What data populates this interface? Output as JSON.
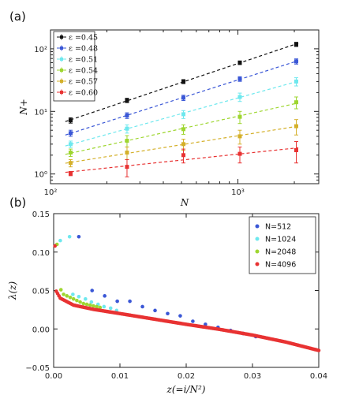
{
  "panel_labels": {
    "a": "(a)",
    "b": "(b)"
  },
  "chart_data": [
    {
      "type": "scatter",
      "panel": "(a)",
      "xlabel": "N",
      "ylabel": "N+",
      "xscale": "log",
      "yscale": "log",
      "xlim": [
        100,
        2700
      ],
      "ylim": [
        0.7,
        200
      ],
      "x_ticks": [
        {
          "v": 100,
          "l": "10²"
        },
        {
          "v": 1000,
          "l": "10³"
        }
      ],
      "y_ticks": [
        {
          "v": 1,
          "l": "10⁰"
        },
        {
          "v": 10,
          "l": "10¹"
        },
        {
          "v": 100,
          "l": "10²"
        }
      ],
      "error_bars": true,
      "fit_lines": "dashed",
      "grid": false,
      "legend": "top-left",
      "x": [
        128,
        256,
        512,
        1024,
        2048
      ],
      "series": [
        {
          "name": "ε =0.45",
          "color": "#111111",
          "values": [
            7.2,
            15,
            30,
            60,
            118
          ],
          "errors": [
            0.7,
            1.2,
            2.2,
            4,
            9
          ]
        },
        {
          "name": "ε =0.48",
          "color": "#3a57d6",
          "values": [
            4.5,
            8.6,
            16.5,
            33,
            63
          ],
          "errors": [
            0.5,
            0.9,
            1.6,
            2.8,
            6
          ]
        },
        {
          "name": "ε =0.51",
          "color": "#6ee8ee",
          "values": [
            3.0,
            5.3,
            9.0,
            17,
            30
          ],
          "errors": [
            0.35,
            0.8,
            1.3,
            2.6,
            4.5
          ]
        },
        {
          "name": "ε =0.54",
          "color": "#9ed630",
          "values": [
            2.2,
            3.4,
            5.2,
            8.2,
            14
          ],
          "errors": [
            0.3,
            0.7,
            0.9,
            1.8,
            3
          ]
        },
        {
          "name": "ε =0.57",
          "color": "#d4b02a",
          "values": [
            1.5,
            2.2,
            3.0,
            4.0,
            5.8
          ],
          "errors": [
            0.2,
            0.5,
            0.6,
            1.0,
            1.6
          ]
        },
        {
          "name": "ε =0.60",
          "color": "#e83232",
          "values": [
            1.02,
            1.3,
            2.0,
            2.1,
            2.4
          ],
          "errors": [
            0.08,
            0.4,
            0.5,
            0.6,
            0.9
          ]
        }
      ]
    },
    {
      "type": "scatter",
      "panel": "(b)",
      "xlabel": "z(=i/N²)",
      "ylabel": "λ(z)",
      "xlim": [
        0.0,
        0.04
      ],
      "ylim": [
        -0.05,
        0.15
      ],
      "x_ticks": [
        {
          "v": 0.0,
          "l": "0.00"
        },
        {
          "v": 0.01,
          "l": "0.01"
        },
        {
          "v": 0.02,
          "l": "0.02"
        },
        {
          "v": 0.03,
          "l": "0.03"
        },
        {
          "v": 0.04,
          "l": "0.04"
        }
      ],
      "y_ticks": [
        {
          "v": -0.05,
          "l": "−0.05"
        },
        {
          "v": 0.0,
          "l": "0.00"
        },
        {
          "v": 0.05,
          "l": "0.05"
        },
        {
          "v": 0.1,
          "l": "0.10"
        },
        {
          "v": 0.15,
          "l": "0.15"
        }
      ],
      "grid": false,
      "legend": "top-right",
      "series": [
        {
          "name": "N=512",
          "color": "#3a57d6",
          "points": [
            [
              0.0038,
              0.12
            ],
            [
              0.0058,
              0.05
            ],
            [
              0.0077,
              0.043
            ],
            [
              0.0096,
              0.036
            ],
            [
              0.0115,
              0.036
            ],
            [
              0.0134,
              0.029
            ],
            [
              0.0153,
              0.024
            ],
            [
              0.0172,
              0.02
            ],
            [
              0.0191,
              0.017
            ],
            [
              0.021,
              0.01
            ],
            [
              0.0229,
              0.006
            ],
            [
              0.0248,
              0.002
            ],
            [
              0.0267,
              -0.002
            ],
            [
              0.0286,
              -0.006
            ],
            [
              0.0305,
              -0.01
            ]
          ]
        },
        {
          "name": "N=1024",
          "color": "#6ee8ee",
          "points": [
            [
              0.001,
              0.115
            ],
            [
              0.0024,
              0.12
            ],
            [
              0.0029,
              0.045
            ],
            [
              0.0038,
              0.042
            ],
            [
              0.0048,
              0.039
            ],
            [
              0.0057,
              0.035
            ],
            [
              0.0067,
              0.032
            ],
            [
              0.0076,
              0.029
            ],
            [
              0.0086,
              0.027
            ],
            [
              0.0095,
              0.024
            ]
          ]
        },
        {
          "name": "N=2048",
          "color": "#9ed630",
          "points": [
            [
              0.0005,
              0.11
            ],
            [
              0.0011,
              0.051
            ],
            [
              0.0015,
              0.045
            ],
            [
              0.002,
              0.043
            ],
            [
              0.0025,
              0.041
            ],
            [
              0.003,
              0.039
            ],
            [
              0.0035,
              0.037
            ],
            [
              0.004,
              0.035
            ],
            [
              0.0045,
              0.033
            ],
            [
              0.005,
              0.032
            ],
            [
              0.0055,
              0.031
            ],
            [
              0.006,
              0.03
            ],
            [
              0.0065,
              0.029
            ],
            [
              0.007,
              0.028
            ]
          ]
        },
        {
          "name": "N=4096",
          "color": "#e83232",
          "points": [
            [
              0.0002,
              0.108
            ],
            [
              0.0004,
              0.049
            ],
            [
              0.001,
              0.04
            ],
            [
              0.003,
              0.031
            ],
            [
              0.006,
              0.0255
            ],
            [
              0.01,
              0.02
            ],
            [
              0.015,
              0.013
            ],
            [
              0.02,
              0.006
            ],
            [
              0.025,
              -0.0005
            ],
            [
              0.03,
              -0.008
            ],
            [
              0.035,
              -0.017
            ],
            [
              0.04,
              -0.028
            ]
          ]
        }
      ]
    }
  ]
}
